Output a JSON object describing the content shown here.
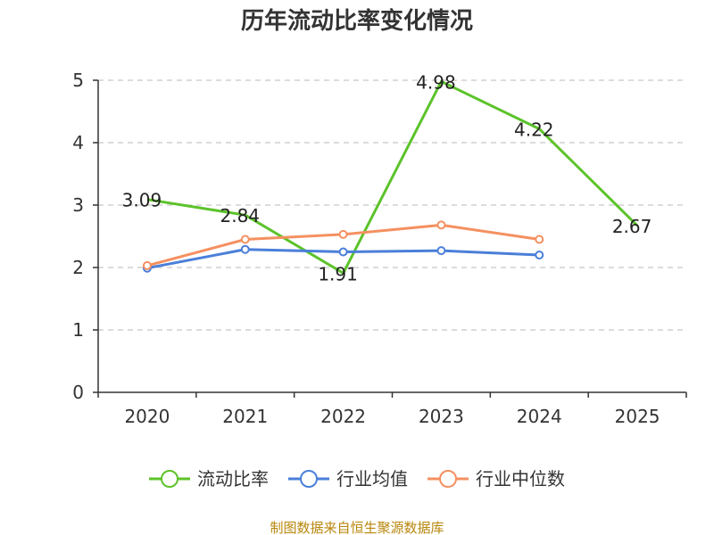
{
  "chart_data": {
    "type": "line",
    "title": "历年流动比率变化情况",
    "source": "制图数据来自恒生聚源数据库",
    "categories": [
      "2020",
      "2021",
      "2022",
      "2023",
      "2024",
      "2025"
    ],
    "ylim": [
      0,
      5
    ],
    "yticks": [
      "0",
      "1",
      "2",
      "3",
      "4",
      "5"
    ],
    "grid": true,
    "legend_position": "bottom",
    "series": [
      {
        "name": "流动比率",
        "color": "#5cc32a",
        "values": [
          3.09,
          2.84,
          1.91,
          4.98,
          4.22,
          2.67
        ],
        "labels": [
          "3.09",
          "2.84",
          "1.91",
          "4.98",
          "4.22",
          "2.67"
        ],
        "show_labels": true,
        "markers": false
      },
      {
        "name": "行业均值",
        "color": "#4a7fd9",
        "values": [
          1.99,
          2.29,
          2.25,
          2.27,
          2.2,
          null
        ],
        "show_labels": false,
        "markers": true
      },
      {
        "name": "行业中位数",
        "color": "#f59060",
        "values": [
          2.03,
          2.45,
          2.53,
          2.68,
          2.45,
          null
        ],
        "show_labels": false,
        "markers": true
      }
    ]
  }
}
